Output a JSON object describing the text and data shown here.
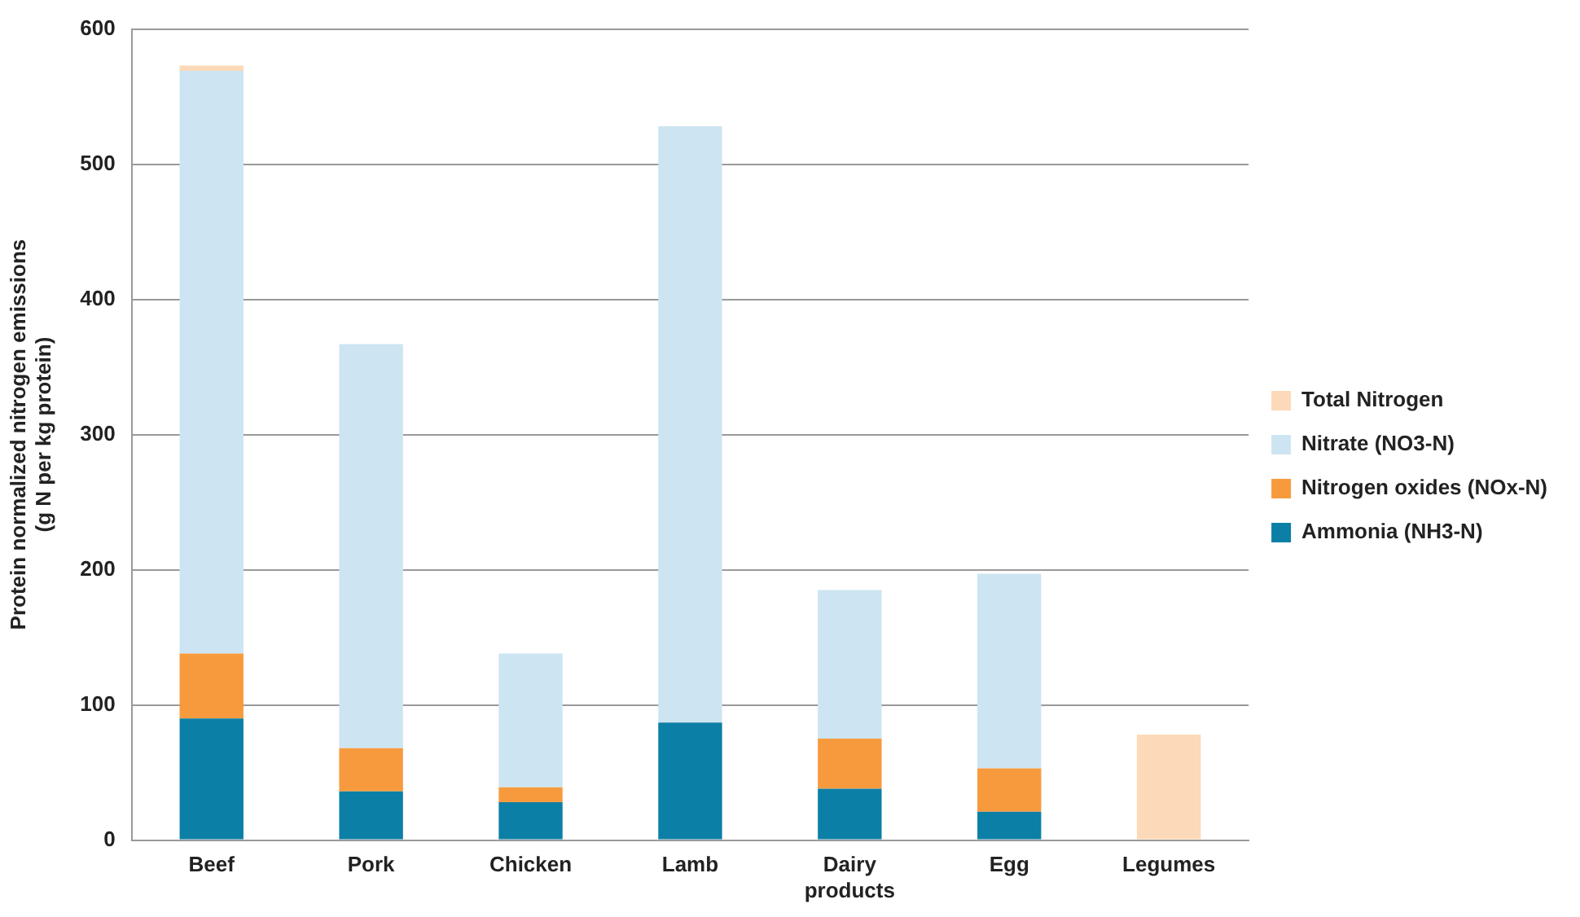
{
  "chart_data": {
    "type": "bar",
    "stacked": true,
    "ylabel": "Protein normalized nitrogen emissions\n(g N per kg protein)",
    "categories": [
      "Beef",
      "Pork",
      "Chicken",
      "Lamb",
      "Dairy products",
      "Egg",
      "Legumes"
    ],
    "series": [
      {
        "name": "Ammonia (NH3-N)",
        "color": "#0b7fa5",
        "values": [
          90,
          36,
          28,
          87,
          38,
          21,
          0
        ]
      },
      {
        "name": "Nitrogen oxides (NOx-N)",
        "color": "#f79a3e",
        "values": [
          48,
          32,
          11,
          0,
          37,
          32,
          0
        ]
      },
      {
        "name": "Nitrate (NO3-N)",
        "color": "#cde5f2",
        "values": [
          431,
          299,
          99,
          441,
          110,
          144,
          0
        ]
      },
      {
        "name": "Total Nitrogen",
        "color": "#fcd9b8",
        "values": [
          4,
          0,
          0,
          0,
          0,
          0,
          78
        ]
      }
    ],
    "ylim": [
      0,
      600
    ],
    "yticks": [
      0,
      100,
      200,
      300,
      400,
      500,
      600
    ],
    "grid": "y",
    "legend": "right"
  }
}
